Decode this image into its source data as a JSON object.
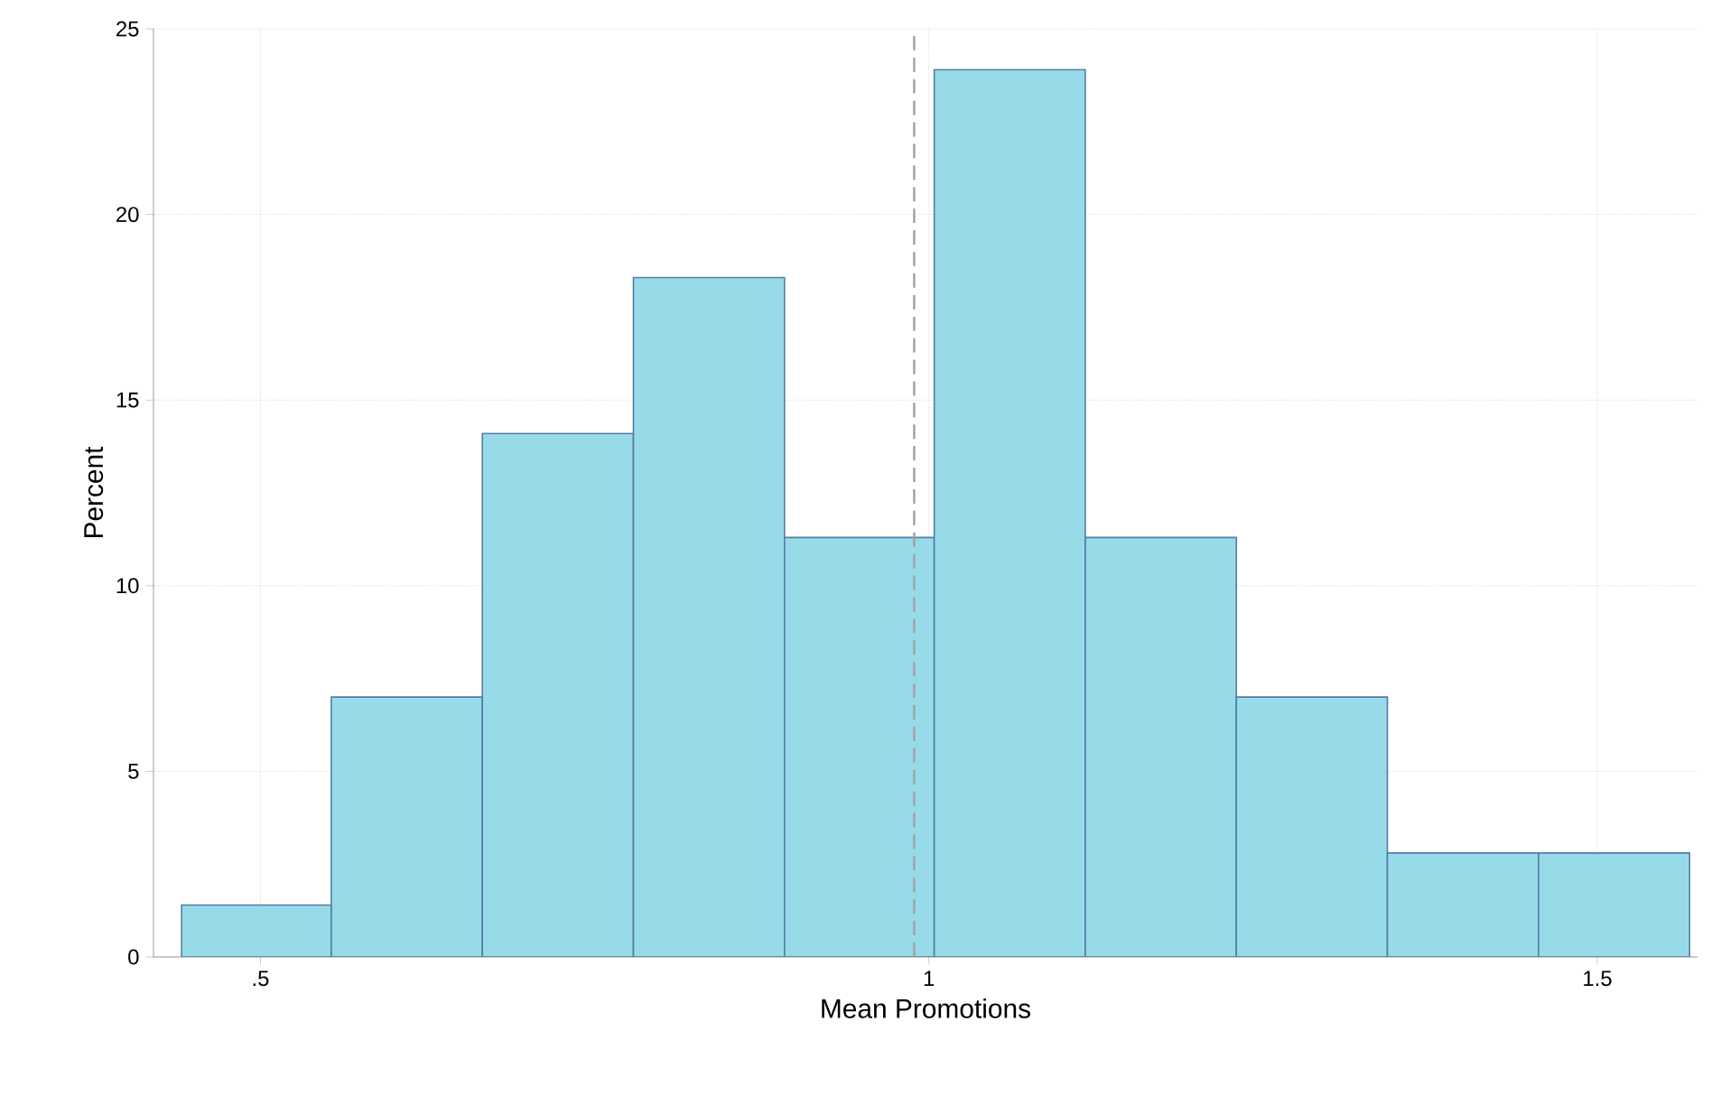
{
  "chart_data": {
    "type": "histogram",
    "xlabel": "Mean Promotions",
    "ylabel": "Percent",
    "bins": [
      0.441,
      0.553,
      0.666,
      0.779,
      0.892,
      1.004,
      1.117,
      1.23,
      1.343,
      1.456,
      1.569
    ],
    "values": [
      1.4,
      7.0,
      14.1,
      18.3,
      11.3,
      23.9,
      11.3,
      7.0,
      2.8,
      2.8
    ],
    "color": "#97dbe9",
    "xlim": [
      0.42,
      1.575
    ],
    "ylim": [
      0,
      25
    ],
    "xticks": [
      {
        "value": 0.5,
        "label": ".5"
      },
      1,
      1.5
    ],
    "yticks": [
      0,
      5,
      10,
      15,
      20,
      25
    ],
    "grid": true,
    "ref_lines": [
      {
        "axis": "x",
        "value": 0.989,
        "color": "#a0a0a0",
        "line_style": "dashed"
      }
    ]
  }
}
